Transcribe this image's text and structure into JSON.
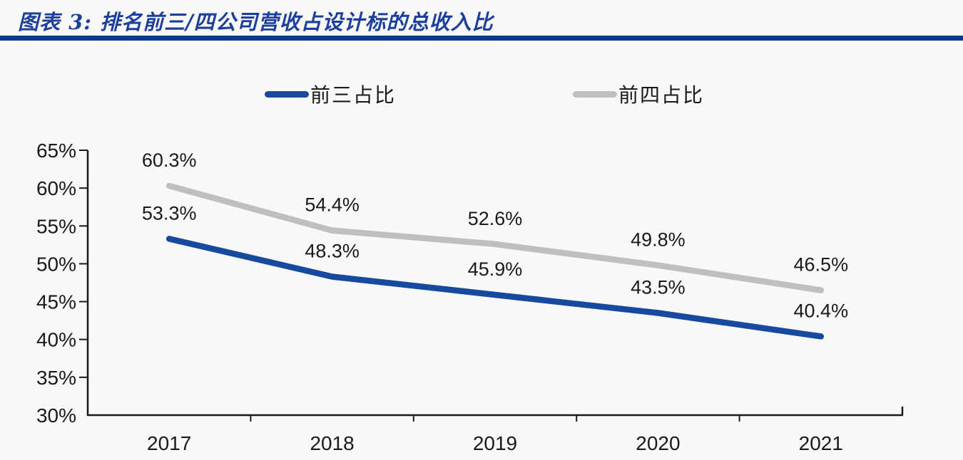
{
  "header": {
    "title": "图表 3:  排名前三/四公司营收占设计标的总收入比",
    "title_color": "#1C3F9B",
    "accent_color": "#09388F"
  },
  "chart_data": {
    "type": "line",
    "categories": [
      "2017",
      "2018",
      "2019",
      "2020",
      "2021"
    ],
    "series": [
      {
        "name": "前三占比",
        "color": "#17499E",
        "values": [
          53.3,
          48.3,
          45.9,
          43.5,
          40.4
        ]
      },
      {
        "name": "前四占比",
        "color": "#BFBFBF",
        "values": [
          60.3,
          54.4,
          52.6,
          49.8,
          46.5
        ]
      }
    ],
    "title": "",
    "xlabel": "",
    "ylabel": "",
    "ylim": [
      30,
      65
    ],
    "ytick_step": 5,
    "ytick_labels": [
      "30%",
      "35%",
      "40%",
      "45%",
      "50%",
      "55%",
      "60%",
      "65%"
    ],
    "data_labels": true,
    "data_label_format": "0.0%",
    "legend_position": "top",
    "grid": false,
    "axis_color": "#1a1a1a",
    "label_color": "#1a1a1a",
    "background_color": "#F8F8F8"
  }
}
